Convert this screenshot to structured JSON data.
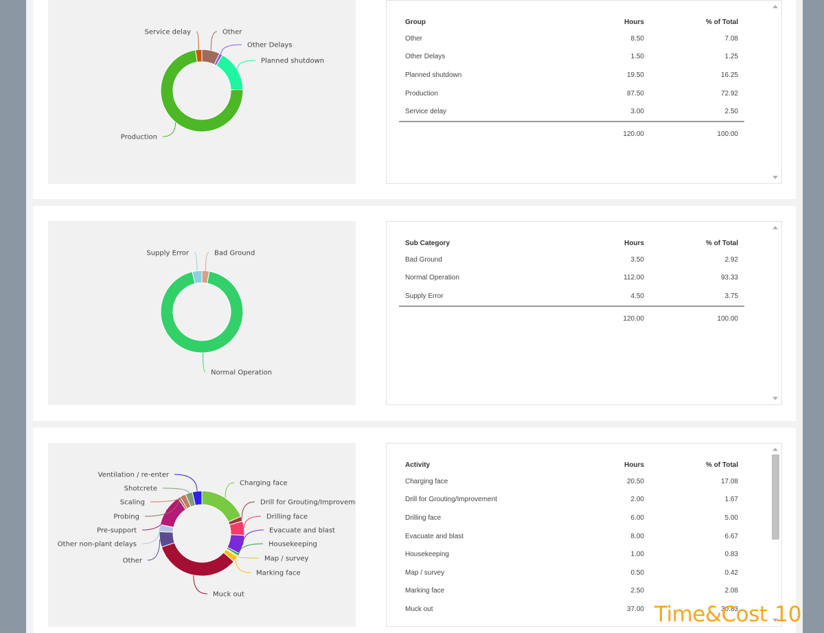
{
  "panels": [
    {
      "table": {
        "headers": [
          "Group",
          "Hours",
          "% of Total"
        ],
        "rows": [
          [
            "Other",
            "8.50",
            "7.08"
          ],
          [
            "Other Delays",
            "1.50",
            "1.25"
          ],
          [
            "Planned shutdown",
            "19.50",
            "16.25"
          ],
          [
            "Production",
            "87.50",
            "72.92"
          ],
          [
            "Service delay",
            "3.00",
            "2.50"
          ]
        ],
        "total": [
          "",
          "120.00",
          "100.00"
        ]
      }
    },
    {
      "table": {
        "headers": [
          "Sub Category",
          "Hours",
          "% of Total"
        ],
        "rows": [
          [
            "Bad Ground",
            "3.50",
            "2.92"
          ],
          [
            "Normal Operation",
            "112.00",
            "93.33"
          ],
          [
            "Supply Error",
            "4.50",
            "3.75"
          ]
        ],
        "total": [
          "",
          "120.00",
          "100.00"
        ]
      }
    },
    {
      "table": {
        "headers": [
          "Activity",
          "Hours",
          "% of Total"
        ],
        "rows": [
          [
            "Charging face",
            "20.50",
            "17.08"
          ],
          [
            "Drill for Grouting/Improvement",
            "2.00",
            "1.67"
          ],
          [
            "Drilling face",
            "6.00",
            "5.00"
          ],
          [
            "Evacuate and blast",
            "8.00",
            "6.67"
          ],
          [
            "Housekeeping",
            "1.00",
            "0.83"
          ],
          [
            "Map / survey",
            "0.50",
            "0.42"
          ],
          [
            "Marking face",
            "2.50",
            "2.08"
          ],
          [
            "Muck out",
            "37.00",
            "30.83"
          ]
        ],
        "total": null
      }
    }
  ],
  "chart_data": [
    {
      "type": "pie",
      "categories": [
        "Other",
        "Other Delays",
        "Planned shutdown",
        "Production",
        "Service delay"
      ],
      "values": [
        8.5,
        1.5,
        19.5,
        87.5,
        3.0
      ],
      "colors": [
        "#9e6b5d",
        "#8a5cf0",
        "#1ef6a0",
        "#4cb825",
        "#c8570b"
      ],
      "title": ""
    },
    {
      "type": "pie",
      "categories": [
        "Bad Ground",
        "Normal Operation",
        "Supply Error"
      ],
      "values": [
        3.5,
        112.0,
        4.5
      ],
      "colors": [
        "#d4a189",
        "#33d06a",
        "#8dcfe0"
      ],
      "title": ""
    },
    {
      "type": "pie",
      "categories": [
        "Charging face",
        "Drill for Grouting/Improvement",
        "Drilling face",
        "Evacuate and blast",
        "Housekeeping",
        "Map / survey",
        "Marking face",
        "Muck out",
        "Other",
        "Other non-plant delays",
        "Pre-support",
        "Probing",
        "Scaling",
        "Shotcrete",
        "Ventilation / re-enter"
      ],
      "values": [
        20.5,
        2.0,
        6.0,
        8.0,
        1.0,
        0.5,
        2.5,
        37.0,
        6.5,
        3.0,
        13.5,
        1.0,
        2.5,
        3.0,
        4.0
      ],
      "colors": [
        "#7ac943",
        "#a23b3b",
        "#f33c6b",
        "#7a2ad6",
        "#2d9d4f",
        "#d9c226",
        "#ffc21a",
        "#a50f33",
        "#5a4c8f",
        "#b7c2e5",
        "#b51a74",
        "#8f6a56",
        "#c47b5e",
        "#7d9f78",
        "#2f21e6"
      ],
      "title": ""
    }
  ],
  "branding": {
    "watermark": "Time&Cost",
    "page": "10"
  }
}
